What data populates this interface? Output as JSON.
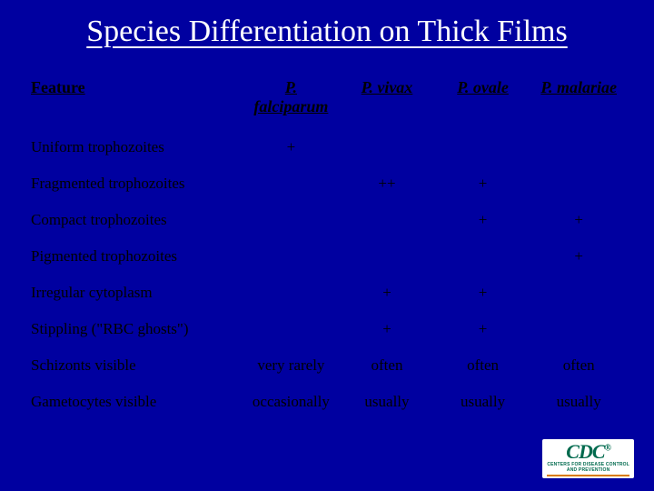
{
  "slide": {
    "background_color": "#0000a0",
    "title_color": "#ffffff",
    "table_text_color": "#000000",
    "title": "Species Differentiation on Thick Films",
    "title_fontsize": 34,
    "header_fontsize": 18,
    "cell_fontsize": 17,
    "columns": [
      {
        "label": "Feature",
        "italic": false,
        "align": "left"
      },
      {
        "label": "P. falciparum",
        "italic": true,
        "align": "center"
      },
      {
        "label": "P. vivax",
        "italic": true,
        "align": "center"
      },
      {
        "label": "P. ovale",
        "italic": true,
        "align": "center"
      },
      {
        "label": "P. malariae",
        "italic": true,
        "align": "center"
      }
    ],
    "rows": [
      {
        "feature": "Uniform trophozoites",
        "cells": [
          "+",
          "",
          "",
          ""
        ]
      },
      {
        "feature": "Fragmented trophozoites",
        "cells": [
          "",
          "++",
          "+",
          ""
        ]
      },
      {
        "feature": "Compact trophozoites",
        "cells": [
          "",
          "",
          "+",
          "+"
        ]
      },
      {
        "feature": "Pigmented trophozoites",
        "cells": [
          "",
          "",
          "",
          "+"
        ]
      },
      {
        "feature": "Irregular cytoplasm",
        "cells": [
          "",
          "+",
          "+",
          ""
        ]
      },
      {
        "feature": "Stippling (\"RBC ghosts\")",
        "cells": [
          "",
          "+",
          "+",
          ""
        ]
      },
      {
        "feature": "Schizonts visible",
        "cells": [
          "very rarely",
          "often",
          "often",
          "often"
        ]
      },
      {
        "feature": "Gametocytes visible",
        "cells": [
          "occasionally",
          "usually",
          "usually",
          "usually"
        ]
      }
    ]
  },
  "logo": {
    "text": "CDC",
    "subtitle_line1": "CENTERS FOR DISEASE CONTROL",
    "subtitle_line2": "AND PREVENTION",
    "brand_color": "#006a4e",
    "accent_color": "#d97b00",
    "background": "#ffffff"
  }
}
